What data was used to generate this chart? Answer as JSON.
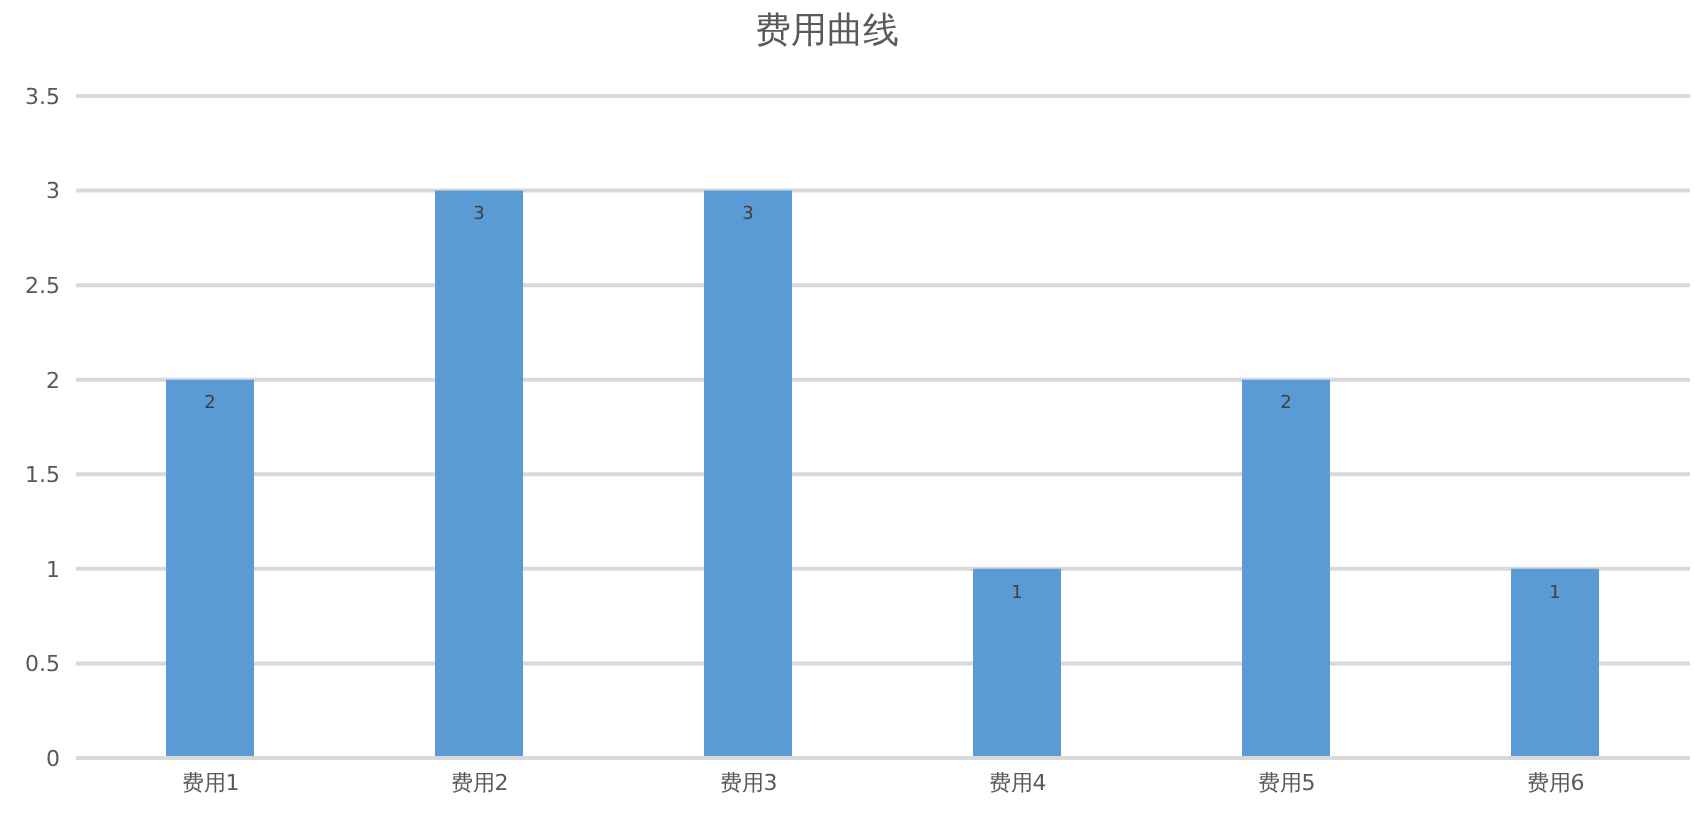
{
  "chart_data": {
    "type": "bar",
    "title": "费用曲线",
    "categories": [
      "费用1",
      "费用2",
      "费用3",
      "费用4",
      "费用5",
      "费用6"
    ],
    "values": [
      2,
      3,
      3,
      1,
      2,
      1
    ],
    "color": "#5b9bd5",
    "ylim": [
      0,
      3.5
    ],
    "yticks": [
      0,
      0.5,
      1,
      1.5,
      2,
      2.5,
      3,
      3.5
    ],
    "grid": "y",
    "data_labels": true
  }
}
